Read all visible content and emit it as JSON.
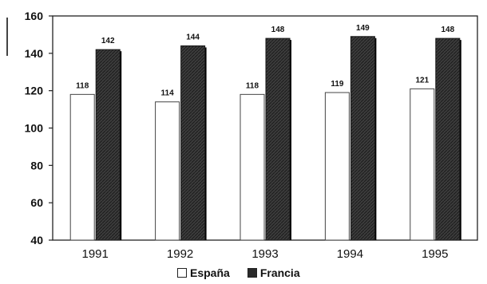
{
  "chart_data": {
    "type": "bar",
    "categories": [
      "1991",
      "1992",
      "1993",
      "1994",
      "1995"
    ],
    "series": [
      {
        "name": "España",
        "values": [
          118,
          114,
          118,
          119,
          121
        ],
        "color": "#ffffff",
        "labels": [
          "118",
          "114",
          "118",
          "119",
          "121"
        ]
      },
      {
        "name": "Francia",
        "values": [
          142,
          144,
          148,
          149,
          148
        ],
        "color": "#3a3a3a",
        "labels": [
          "142",
          "144",
          "148",
          "149",
          "148"
        ]
      }
    ],
    "ylim": [
      40,
      160
    ],
    "yticks": [
      40,
      60,
      80,
      100,
      120,
      140,
      160
    ],
    "ytick_labels": [
      "40",
      "60",
      "80",
      "100",
      "120",
      "140",
      "160"
    ],
    "grid": false,
    "legend": "bottom"
  }
}
